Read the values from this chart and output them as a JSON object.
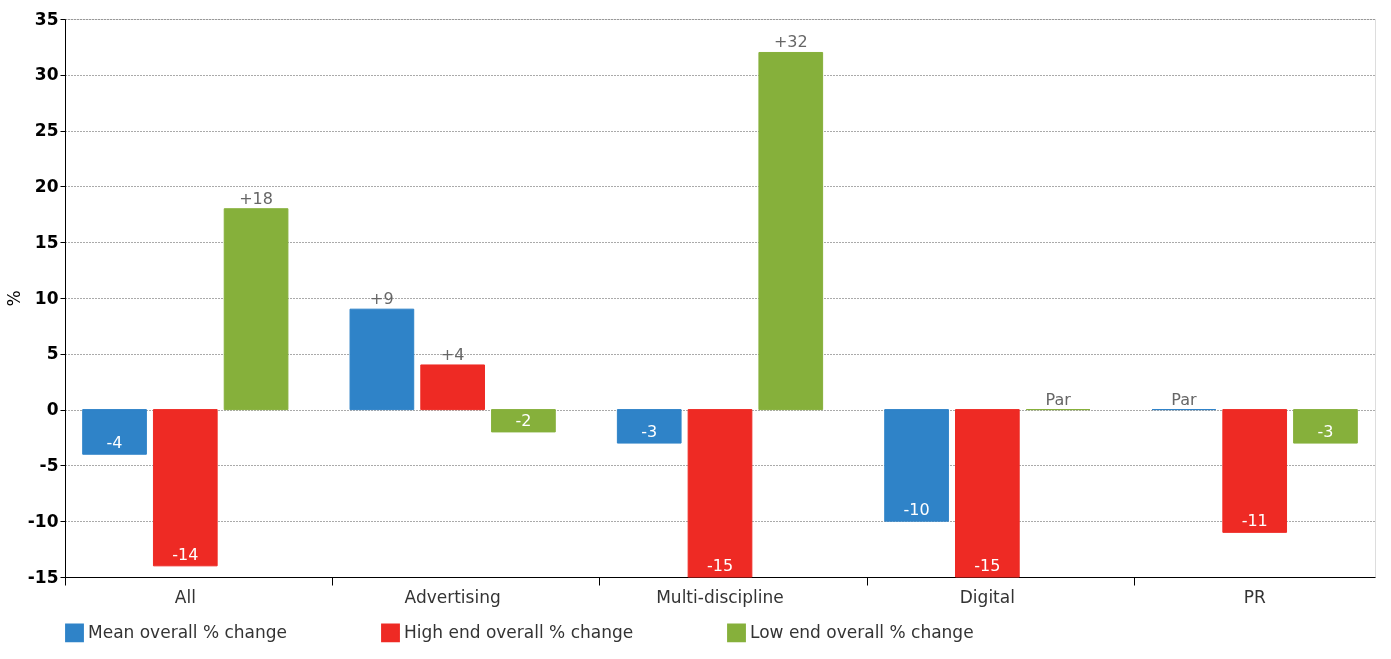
{
  "chart_data": {
    "type": "bar",
    "ylabel": "%",
    "categories": [
      "All",
      "Advertising",
      "Multi-discipline",
      "Digital",
      "PR"
    ],
    "series": [
      {
        "name": "Mean overall % change",
        "color": "#2f83c8",
        "values": [
          -4,
          9,
          -3,
          -10,
          0
        ],
        "value_labels": [
          "-4",
          "+9",
          "-3",
          "-10",
          "Par"
        ]
      },
      {
        "name": "High end overall % change",
        "color": "#ee2a24",
        "values": [
          -14,
          4,
          -15,
          -15,
          -11
        ],
        "value_labels": [
          "-14",
          "+4",
          "-15",
          "-15",
          "-11"
        ]
      },
      {
        "name": "Low end overall % change",
        "color": "#86b03b",
        "values": [
          18,
          -2,
          32,
          0,
          -3
        ],
        "value_labels": [
          "+18",
          "-2",
          "+32",
          "Par",
          "-3"
        ]
      }
    ],
    "ylim": [
      -15,
      35
    ],
    "yticks": [
      -15,
      -10,
      -5,
      0,
      5,
      10,
      15,
      20,
      25,
      30,
      35
    ],
    "grid": "y",
    "legend": "bottom"
  }
}
